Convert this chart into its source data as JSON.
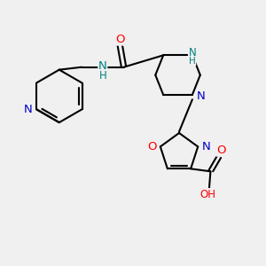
{
  "bg_color": "#f0f0f0",
  "bond_color": "#000000",
  "bond_width": 1.5,
  "atom_colors": {
    "N": "#0000cc",
    "O": "#ff0000",
    "NH": "#008080",
    "H": "#008080"
  },
  "font_size": 8.5,
  "fig_size": [
    3.0,
    3.0
  ],
  "dpi": 100
}
